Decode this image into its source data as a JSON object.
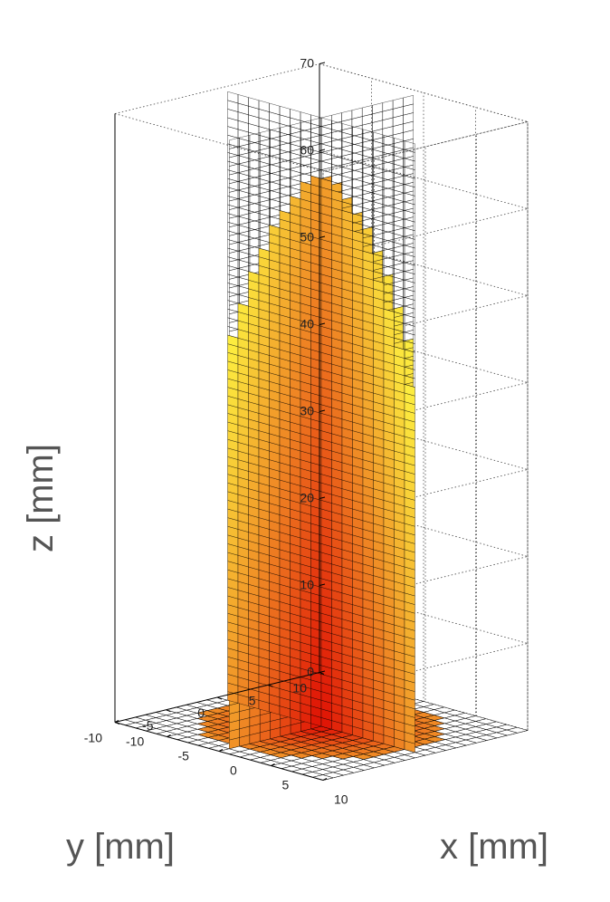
{
  "chart_data": {
    "type": "surface3d",
    "title": "",
    "xlabel": "x [mm]",
    "ylabel": "y [mm]",
    "zlabel": "z [mm]",
    "xlim": [
      -10,
      10
    ],
    "ylim": [
      -10,
      10
    ],
    "zlim": [
      0,
      70
    ],
    "x_ticks": [
      -10,
      -5,
      0,
      5,
      10
    ],
    "y_ticks": [
      -10,
      -5,
      0,
      5,
      10
    ],
    "z_ticks": [
      0,
      10,
      20,
      30,
      40,
      50,
      60,
      70
    ],
    "grid": true,
    "box": true,
    "grid_step_mm": 1,
    "colormap": "autumn (red to yellow)",
    "colors": {
      "low": "#dd0000",
      "high": "#ffff44",
      "mesh": "#000000",
      "grid": "#555555"
    },
    "series": [
      {
        "name": "",
        "description": "",
        "x_values": [
          -10,
          -9,
          -8,
          -7,
          -6,
          -5,
          -4,
          -3,
          -2,
          -1,
          0,
          1,
          2,
          3,
          4,
          5,
          6,
          7,
          8,
          9,
          10
        ],
        "z_profile_at_y0": [
          0,
          42,
          46,
          50,
          53,
          56,
          58,
          60,
          62,
          63,
          64,
          63,
          62,
          60,
          58,
          56,
          53,
          50,
          46,
          42,
          0
        ]
      },
      {
        "name": "",
        "description": "",
        "y_values": [
          -10,
          -9,
          -8,
          -7,
          -6,
          -5,
          -4,
          -3,
          -2,
          -1,
          0,
          1,
          2,
          3,
          4,
          5,
          6,
          7,
          8,
          9,
          10
        ],
        "z_profile_at_x0": [
          0,
          42,
          46,
          50,
          53,
          56,
          58,
          60,
          62,
          63,
          64,
          63,
          62,
          60,
          58,
          56,
          53,
          50,
          46,
          42,
          0
        ]
      },
      {
        "name": "",
        "description": "",
        "z_value": 0,
        "filled_radius_mm": 8.5
      }
    ],
    "planes": [
      {
        "name": "",
        "orientation": "y=0",
        "z_top": 70
      },
      {
        "name": "",
        "orientation": "x=0",
        "z_top": 70
      }
    ]
  }
}
